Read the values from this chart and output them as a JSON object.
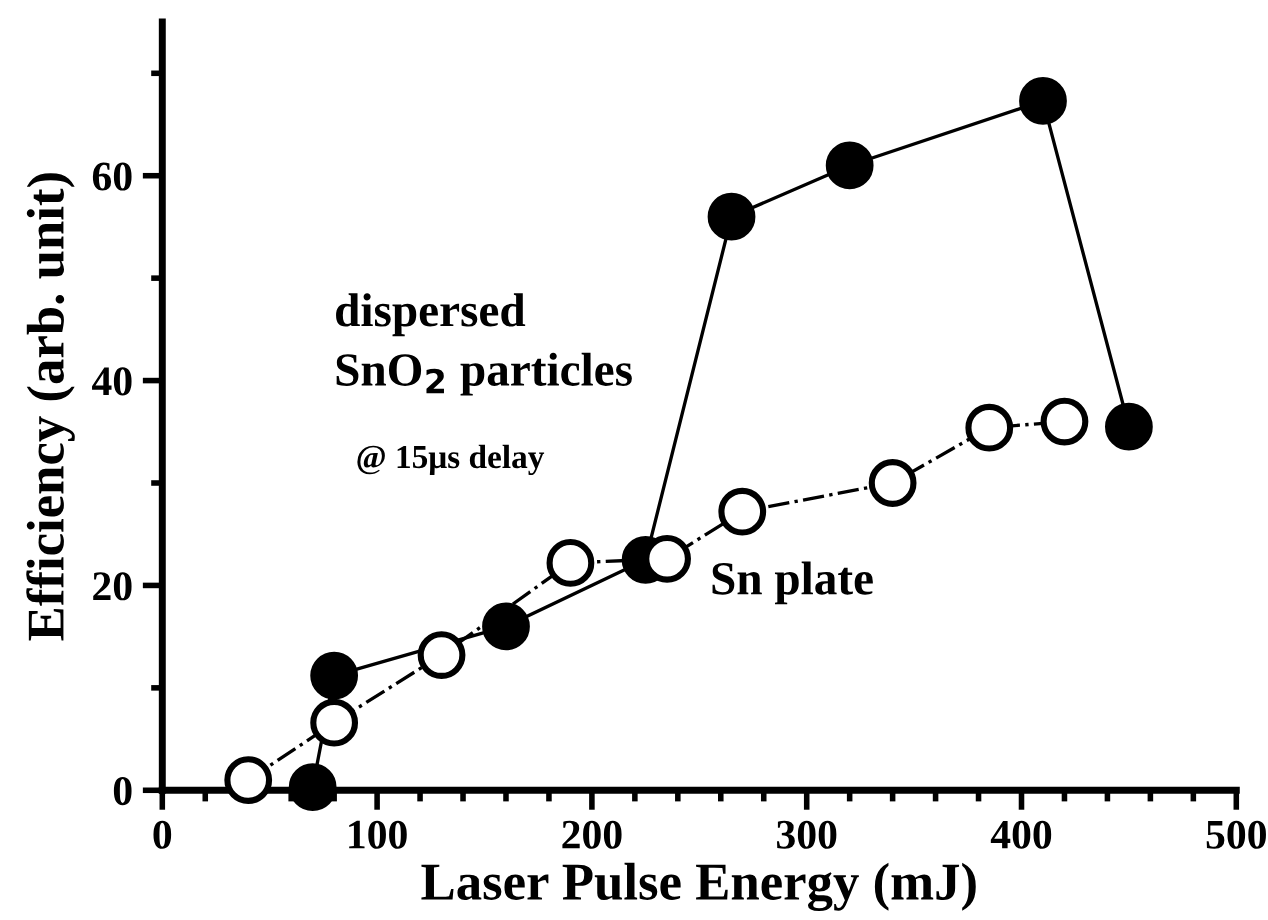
{
  "chart_data": {
    "type": "line",
    "xlabel": "Laser Pulse Energy (mJ)",
    "ylabel": "Efficiency (arb. unit)",
    "xlim": [
      0,
      500
    ],
    "xticks": [
      0,
      100,
      200,
      300,
      400,
      500
    ],
    "ylim": [
      0,
      75
    ],
    "yticks": [
      0,
      20,
      40,
      60
    ],
    "grid": false,
    "legend": false,
    "marker": "circle",
    "series": [
      {
        "name": "dispersed\nSnO$_{2}$ particles",
        "color": "#000000",
        "line_style": "solid",
        "x": [
          70,
          80,
          160,
          225,
          265,
          320,
          410,
          450
        ],
        "values": [
          0.3,
          11.2,
          16,
          22.5,
          56,
          61,
          67.3,
          35.5
        ]
      },
      {
        "name": "Sn plate",
        "color": "#000000",
        "line_style": "dashdot",
        "x": [
          40,
          80,
          130,
          190,
          235,
          270,
          340,
          385,
          420
        ],
        "values": [
          1,
          6.6,
          13.2,
          22.2,
          22.6,
          27.2,
          30,
          35.4,
          36
        ]
      }
    ],
    "annotations": [
      "@ 15μs delay"
    ]
  }
}
